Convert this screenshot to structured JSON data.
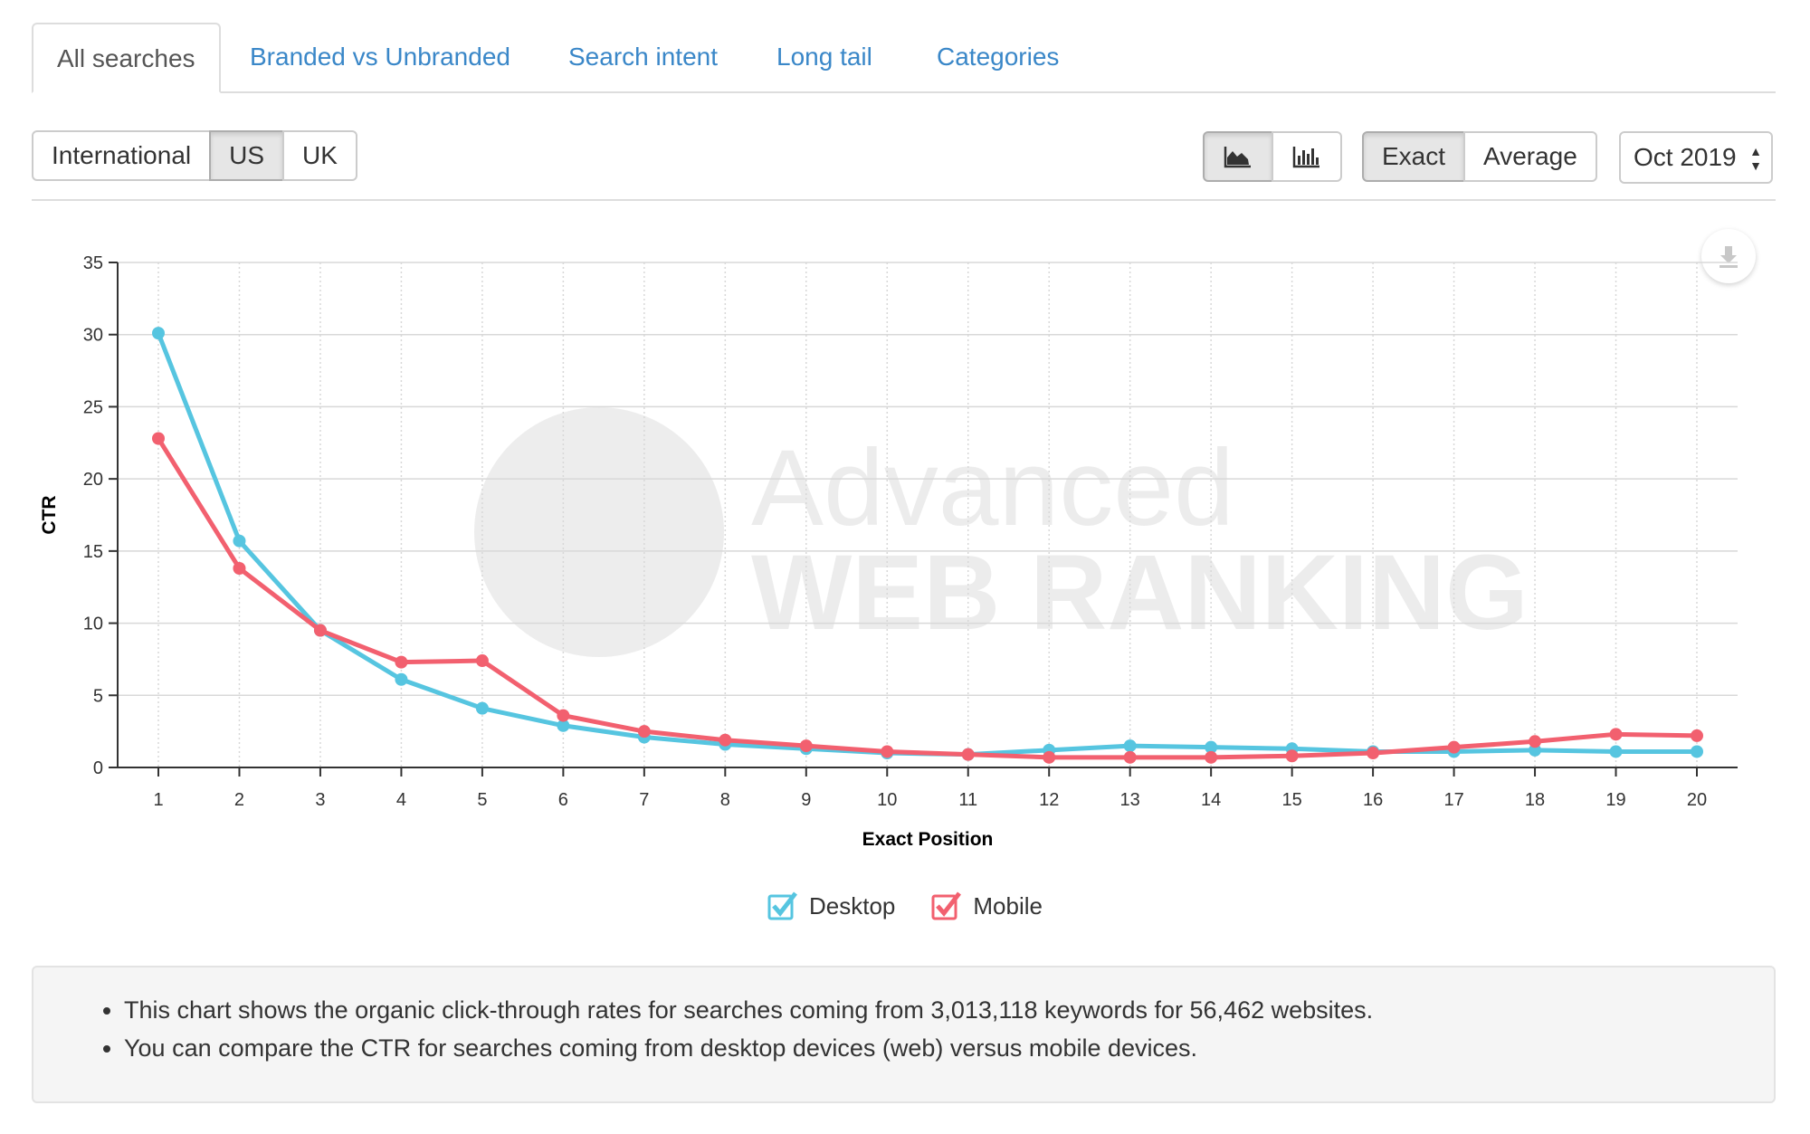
{
  "tabs": [
    {
      "label": "All searches",
      "active": true
    },
    {
      "label": "Branded vs Unbranded",
      "active": false
    },
    {
      "label": "Search intent",
      "active": false
    },
    {
      "label": "Long tail",
      "active": false
    },
    {
      "label": "Categories",
      "active": false
    }
  ],
  "region": {
    "options": [
      "International",
      "US",
      "UK"
    ],
    "selected": "US"
  },
  "chart_type_buttons": {
    "area_icon": "area-chart-icon",
    "bar_icon": "bar-chart-icon",
    "selected": "area"
  },
  "mode": {
    "options": [
      "Exact",
      "Average"
    ],
    "selected": "Exact"
  },
  "date_select": {
    "value": "Oct 2019"
  },
  "download_icon": "download-icon",
  "watermark": {
    "line1": "Advanced",
    "line2": "WEB RANKING"
  },
  "colors": {
    "desktop": "#56c5e0",
    "mobile": "#f2606f",
    "grid": "#d8d8d8"
  },
  "chart_data": {
    "type": "line",
    "xlabel": "Exact Position",
    "ylabel": "CTR",
    "ylim": [
      0,
      35
    ],
    "yticks": [
      0,
      5,
      10,
      15,
      20,
      25,
      30,
      35
    ],
    "x": [
      1,
      2,
      3,
      4,
      5,
      6,
      7,
      8,
      9,
      10,
      11,
      12,
      13,
      14,
      15,
      16,
      17,
      18,
      19,
      20
    ],
    "grid": true,
    "legend": "bottom-center",
    "series": [
      {
        "name": "Desktop",
        "values": [
          30.1,
          15.7,
          9.5,
          6.1,
          4.1,
          2.9,
          2.1,
          1.6,
          1.3,
          1.0,
          0.9,
          1.2,
          1.5,
          1.4,
          1.3,
          1.1,
          1.1,
          1.2,
          1.1,
          1.1
        ]
      },
      {
        "name": "Mobile",
        "values": [
          22.8,
          13.8,
          9.5,
          7.3,
          7.4,
          3.6,
          2.5,
          1.9,
          1.5,
          1.1,
          0.9,
          0.7,
          0.7,
          0.7,
          0.8,
          1.0,
          1.4,
          1.8,
          2.3,
          2.2
        ]
      }
    ]
  },
  "info": {
    "bullets": [
      "This chart shows the organic click-through rates for searches coming from 3,013,118 keywords for 56,462 websites.",
      "You can compare the CTR for searches coming from desktop devices (web) versus mobile devices."
    ]
  }
}
